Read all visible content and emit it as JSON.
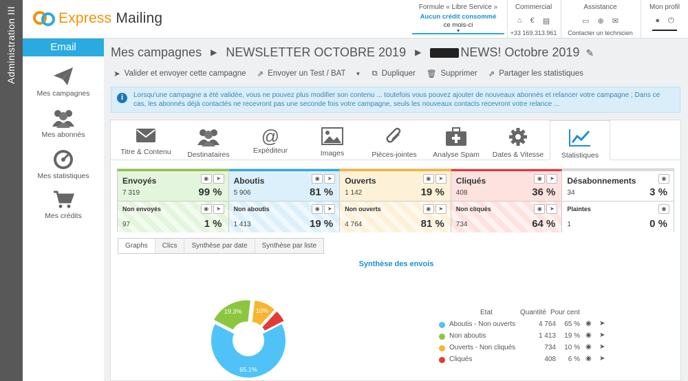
{
  "admin_bar": {
    "label": "Administration III"
  },
  "logo": {
    "express": "Express",
    "mailing": "Mailing"
  },
  "topbar": {
    "formule": {
      "title": "Formule « Libre Service »",
      "line1": "Aucun crédit consommé",
      "line2": "ce mois-ci"
    },
    "commercial": {
      "title": "Commercial",
      "phone": "+33 169.313.961"
    },
    "assistance": {
      "title": "Assistance",
      "sub": "Contacter un technicien"
    },
    "profil": {
      "title": "Mon profil"
    }
  },
  "sidebar": {
    "email_tab": "Email",
    "items": [
      {
        "label": "Mes campagnes",
        "icon": "paper-plane-icon"
      },
      {
        "label": "Mes abonnés",
        "icon": "users-icon"
      },
      {
        "label": "Mes statistiques",
        "icon": "gauge-icon"
      },
      {
        "label": "Mes crédits",
        "icon": "cart-icon"
      }
    ]
  },
  "breadcrumb": {
    "root": "Mes campagnes",
    "folder": "NEWSLETTER OCTOBRE 2019",
    "campaign": "NEWS! Octobre 2019"
  },
  "toolbar": {
    "validate": "Valider et envoyer cette campagne",
    "test": "Envoyer un Test / BAT",
    "duplicate": "Dupliquer",
    "delete": "Supprimer",
    "share": "Partager les statistiques"
  },
  "info_text": "Lorsqu'une campagne a été validée, vous ne pouvez plus modifier son contenu ... toutefois vous pouvez ajouter de nouveaux abonnés et relancer votre campagne ; Dans ce cas, les abonnés déjà contactés ne recevront pas une seconde fois votre campagne, seuls les nouveaux contacts recevront votre relance ...",
  "tabs": [
    {
      "label": "Titre & Contenu",
      "icon": "envelope-icon"
    },
    {
      "label": "Destinataires",
      "icon": "users-icon"
    },
    {
      "label": "Expéditeur",
      "icon": "at-icon"
    },
    {
      "label": "Images",
      "icon": "image-icon"
    },
    {
      "label": "Pièces-jointes",
      "icon": "paperclip-icon"
    },
    {
      "label": "Analyse Spam",
      "icon": "medkit-icon"
    },
    {
      "label": "Dates & Vitesse",
      "icon": "gear-icon"
    },
    {
      "label": "Statistiques",
      "icon": "line-chart-icon"
    }
  ],
  "stats": {
    "top": [
      {
        "label": "Envoyés",
        "qty": "7 319",
        "pct": "99 %",
        "color": "green"
      },
      {
        "label": "Aboutis",
        "qty": "5 906",
        "pct": "81 %",
        "color": "blue"
      },
      {
        "label": "Ouverts",
        "qty": "1 142",
        "pct": "19 %",
        "color": "yellow"
      },
      {
        "label": "Cliqués",
        "qty": "408",
        "pct": "36 %",
        "color": "red"
      },
      {
        "label": "Désabonnements",
        "qty": "34",
        "pct": "3 %",
        "color": "grey"
      }
    ],
    "bottom": [
      {
        "label": "Non envoyés",
        "qty": "97",
        "pct": "1 %",
        "color": "green"
      },
      {
        "label": "Non aboutis",
        "qty": "1 413",
        "pct": "19 %",
        "color": "blue"
      },
      {
        "label": "Non ouverts",
        "qty": "4 764",
        "pct": "81 %",
        "color": "yellow"
      },
      {
        "label": "Non cliqués",
        "qty": "734",
        "pct": "64 %",
        "color": "red"
      },
      {
        "label": "Plaintes",
        "qty": "1",
        "pct": "0 %",
        "color": "grey"
      }
    ]
  },
  "subtabs": [
    "Graphs",
    "Clics",
    "Synthèse par date",
    "Synthèse par liste"
  ],
  "chart_data": {
    "type": "pie",
    "title": "Synthèse des envois",
    "legend_headers": {
      "etat": "Etat",
      "quantite": "Quantité",
      "pourcent": "Pour cent"
    },
    "slices": [
      {
        "name": "Aboutis - Non ouverts",
        "value": 4764,
        "percent": "65 %",
        "label": "65.1%",
        "color": "#4fc3f7"
      },
      {
        "name": "Non aboutis",
        "value": 1413,
        "percent": "19 %",
        "label": "19.3%",
        "color": "#8cc63f"
      },
      {
        "name": "Ouverts - Non cliqués",
        "value": 734,
        "percent": "10 %",
        "label": "10%",
        "color": "#f7b531"
      },
      {
        "name": "Cliqués",
        "value": 408,
        "percent": "6 %",
        "label": "",
        "color": "#e53935"
      }
    ]
  }
}
